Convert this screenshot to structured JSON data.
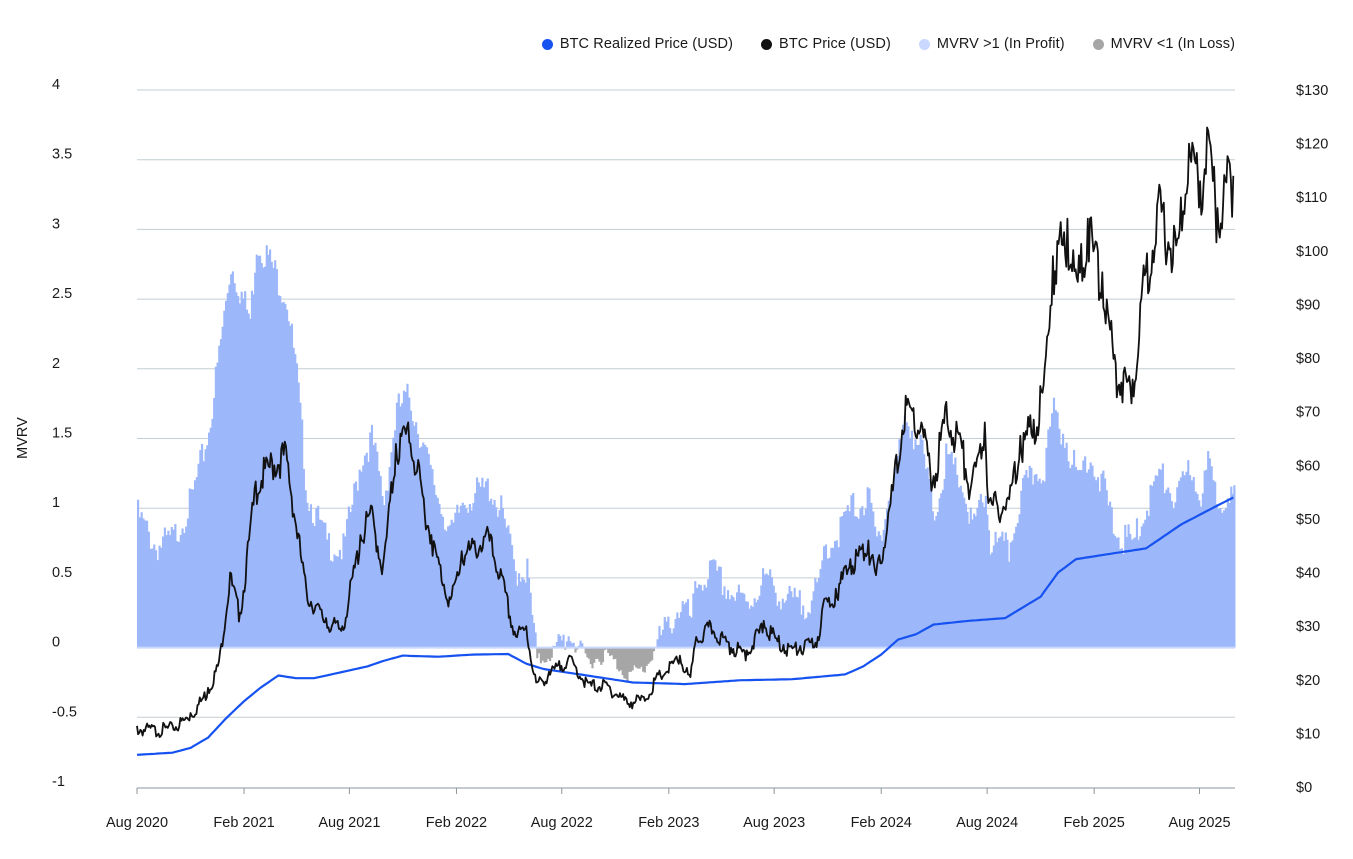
{
  "chart_data": {
    "type": "line",
    "title": "",
    "ylabel_left": "MVRV",
    "ylim_left": [
      -1,
      4
    ],
    "yticks_left": [
      "4",
      "3.5",
      "3",
      "2.5",
      "2",
      "1.5",
      "1",
      "0.5",
      "0",
      "-0.5",
      "-1"
    ],
    "ylim_right": [
      0,
      130
    ],
    "yticks_right": [
      "$130",
      "$120",
      "$110",
      "$100",
      "$90",
      "$80",
      "$70",
      "$60",
      "$50",
      "$40",
      "$30",
      "$20",
      "$10",
      "$0"
    ],
    "xlim": [
      "2020-08-01",
      "2025-10-01"
    ],
    "xticks": [
      "Aug 2020",
      "Feb 2021",
      "Aug 2021",
      "Feb 2022",
      "Aug 2022",
      "Feb 2023",
      "Aug 2023",
      "Feb 2024",
      "Aug 2024",
      "Feb 2025",
      "Aug 2025"
    ],
    "grid": true,
    "legend_position": "top-right",
    "legend": [
      {
        "label": "BTC Realized Price (USD)",
        "color": "#1652f0"
      },
      {
        "label": "BTC Price (USD)",
        "color": "#111111"
      },
      {
        "label": "MVRV >1 (In Profit)",
        "color": "#c9d8ff"
      },
      {
        "label": "MVRV <1 (In Loss)",
        "color": "#a6a6a6"
      }
    ],
    "colors": {
      "realized": "#1652f0",
      "price": "#111111",
      "profit_fill": "#9db7fb",
      "loss_fill": "#a6a6a6",
      "grid": "#c3cdd3"
    },
    "series": [
      {
        "name": "BTC Price (USD)",
        "axis": "right",
        "x": [
          "2020-08-01",
          "2020-09-01",
          "2020-10-01",
          "2020-11-01",
          "2020-12-01",
          "2020-12-20",
          "2021-01-08",
          "2021-01-25",
          "2021-02-21",
          "2021-03-13",
          "2021-04-14",
          "2021-05-19",
          "2021-06-22",
          "2021-07-20",
          "2021-08-20",
          "2021-09-07",
          "2021-09-28",
          "2021-10-20",
          "2021-11-10",
          "2021-12-01",
          "2021-12-20",
          "2022-01-22",
          "2022-02-10",
          "2022-03-28",
          "2022-04-20",
          "2022-05-12",
          "2022-06-01",
          "2022-06-18",
          "2022-07-10",
          "2022-08-14",
          "2022-09-15",
          "2022-10-15",
          "2022-11-09",
          "2022-11-20",
          "2022-12-20",
          "2023-01-14",
          "2023-02-20",
          "2023-03-10",
          "2023-03-20",
          "2023-04-14",
          "2023-05-15",
          "2023-06-15",
          "2023-07-14",
          "2023-08-17",
          "2023-09-15",
          "2023-10-15",
          "2023-10-24",
          "2023-11-15",
          "2023-12-10",
          "2024-01-10",
          "2024-01-23",
          "2024-02-15",
          "2024-03-14",
          "2024-04-10",
          "2024-05-01",
          "2024-05-21",
          "2024-06-15",
          "2024-07-05",
          "2024-07-28",
          "2024-08-05",
          "2024-09-06",
          "2024-09-27",
          "2024-10-20",
          "2024-11-06",
          "2024-11-22",
          "2024-12-17",
          "2025-01-02",
          "2025-01-21",
          "2025-02-15",
          "2025-03-10",
          "2025-04-08",
          "2025-04-25",
          "2025-05-22",
          "2025-06-22",
          "2025-07-14",
          "2025-08-02",
          "2025-08-14",
          "2025-09-01",
          "2025-09-20",
          "2025-09-28"
        ],
        "values": [
          11.4,
          11.2,
          11.5,
          13.8,
          18.5,
          23.5,
          40.0,
          32.5,
          57.0,
          61.0,
          63.5,
          37.0,
          31.5,
          30.0,
          47.0,
          52.5,
          41.5,
          64.0,
          68.0,
          57.5,
          47.0,
          35.0,
          44.0,
          47.5,
          39.5,
          29.0,
          30.0,
          19.5,
          21.5,
          24.5,
          19.5,
          19.5,
          17.5,
          16.5,
          16.8,
          21.0,
          24.5,
          20.5,
          28.0,
          30.5,
          27.0,
          25.5,
          31.0,
          26.5,
          26.3,
          28.0,
          34.0,
          37.0,
          42.5,
          46.0,
          39.5,
          52.0,
          73.0,
          68.0,
          58.0,
          71.0,
          66.0,
          56.5,
          68.0,
          53.5,
          54.0,
          65.5,
          68.5,
          75.0,
          99.0,
          106.0,
          95.0,
          106.0,
          96.0,
          79.0,
          76.0,
          94.0,
          110.0,
          101.0,
          120.0,
          113.0,
          123.0,
          108.0,
          117.0,
          114.0
        ]
      },
      {
        "name": "BTC Realized Price (USD)",
        "axis": "right",
        "x": [
          "2020-08-01",
          "2020-10-01",
          "2020-11-01",
          "2020-12-01",
          "2021-01-01",
          "2021-02-01",
          "2021-03-01",
          "2021-04-01",
          "2021-05-01",
          "2021-06-01",
          "2021-07-01",
          "2021-09-01",
          "2021-10-01",
          "2021-11-01",
          "2021-12-01",
          "2022-01-01",
          "2022-03-01",
          "2022-05-01",
          "2022-06-01",
          "2022-07-01",
          "2022-09-01",
          "2022-11-01",
          "2022-12-01",
          "2023-01-01",
          "2023-03-01",
          "2023-06-01",
          "2023-09-01",
          "2023-12-01",
          "2024-01-01",
          "2024-02-01",
          "2024-03-01",
          "2024-04-01",
          "2024-05-01",
          "2024-07-01",
          "2024-09-01",
          "2024-11-01",
          "2024-12-01",
          "2025-01-01",
          "2025-03-01",
          "2025-05-01",
          "2025-07-01",
          "2025-09-01",
          "2025-09-28"
        ],
        "values": [
          6.0,
          6.4,
          7.3,
          9.2,
          12.8,
          16.0,
          18.5,
          20.8,
          20.3,
          20.3,
          21.0,
          22.5,
          23.6,
          24.5,
          24.4,
          24.3,
          24.7,
          24.8,
          23.0,
          22.0,
          21.0,
          20.0,
          19.5,
          19.4,
          19.2,
          19.9,
          20.1,
          21.0,
          22.5,
          24.7,
          27.5,
          28.5,
          30.3,
          31.0,
          31.5,
          35.5,
          40.0,
          42.5,
          43.5,
          44.5,
          49.0,
          52.5,
          54.0
        ]
      },
      {
        "name": "MVRV",
        "axis": "left",
        "x": [
          "2020-08-01",
          "2020-09-01",
          "2020-10-01",
          "2020-11-01",
          "2020-12-01",
          "2021-01-08",
          "2021-02-10",
          "2021-02-21",
          "2021-03-13",
          "2021-04-14",
          "2021-05-01",
          "2021-05-19",
          "2021-06-22",
          "2021-07-20",
          "2021-08-20",
          "2021-09-07",
          "2021-09-28",
          "2021-10-20",
          "2021-11-10",
          "2021-12-01",
          "2021-12-20",
          "2022-01-22",
          "2022-02-10",
          "2022-03-28",
          "2022-04-20",
          "2022-05-12",
          "2022-06-01",
          "2022-06-18",
          "2022-07-10",
          "2022-08-14",
          "2022-09-15",
          "2022-10-15",
          "2022-11-09",
          "2022-11-20",
          "2022-12-20",
          "2023-01-14",
          "2023-02-20",
          "2023-03-10",
          "2023-03-20",
          "2023-04-14",
          "2023-05-15",
          "2023-06-15",
          "2023-07-14",
          "2023-08-17",
          "2023-09-15",
          "2023-10-15",
          "2023-10-24",
          "2023-11-15",
          "2023-12-10",
          "2024-01-10",
          "2024-01-23",
          "2024-02-15",
          "2024-03-14",
          "2024-04-10",
          "2024-05-01",
          "2024-05-21",
          "2024-06-15",
          "2024-07-05",
          "2024-07-28",
          "2024-08-05",
          "2024-09-06",
          "2024-09-27",
          "2024-10-20",
          "2024-11-06",
          "2024-11-22",
          "2024-12-17",
          "2025-01-02",
          "2025-01-21",
          "2025-02-15",
          "2025-03-10",
          "2025-04-08",
          "2025-04-25",
          "2025-05-22",
          "2025-06-22",
          "2025-07-14",
          "2025-08-02",
          "2025-08-14",
          "2025-09-01",
          "2025-09-20",
          "2025-09-28"
        ],
        "values": [
          0.95,
          0.72,
          0.78,
          1.05,
          1.55,
          2.75,
          2.35,
          2.9,
          2.8,
          2.5,
          1.95,
          1.1,
          0.75,
          0.7,
          1.35,
          1.5,
          1.05,
          1.7,
          1.8,
          1.5,
          1.2,
          0.8,
          1.05,
          1.15,
          0.95,
          0.55,
          0.55,
          -0.1,
          -0.05,
          0.1,
          -0.1,
          -0.05,
          -0.15,
          -0.2,
          -0.15,
          0.05,
          0.3,
          0.2,
          0.45,
          0.55,
          0.4,
          0.3,
          0.5,
          0.35,
          0.3,
          0.4,
          0.7,
          0.8,
          1.0,
          1.05,
          0.75,
          1.1,
          1.65,
          1.4,
          0.95,
          1.35,
          1.2,
          0.85,
          1.1,
          0.75,
          0.7,
          1.1,
          1.25,
          1.3,
          1.7,
          1.45,
          1.2,
          1.4,
          1.15,
          0.8,
          0.75,
          0.95,
          1.25,
          1.05,
          1.3,
          1.1,
          1.3,
          1.05,
          1.15,
          1.05
        ]
      }
    ]
  }
}
